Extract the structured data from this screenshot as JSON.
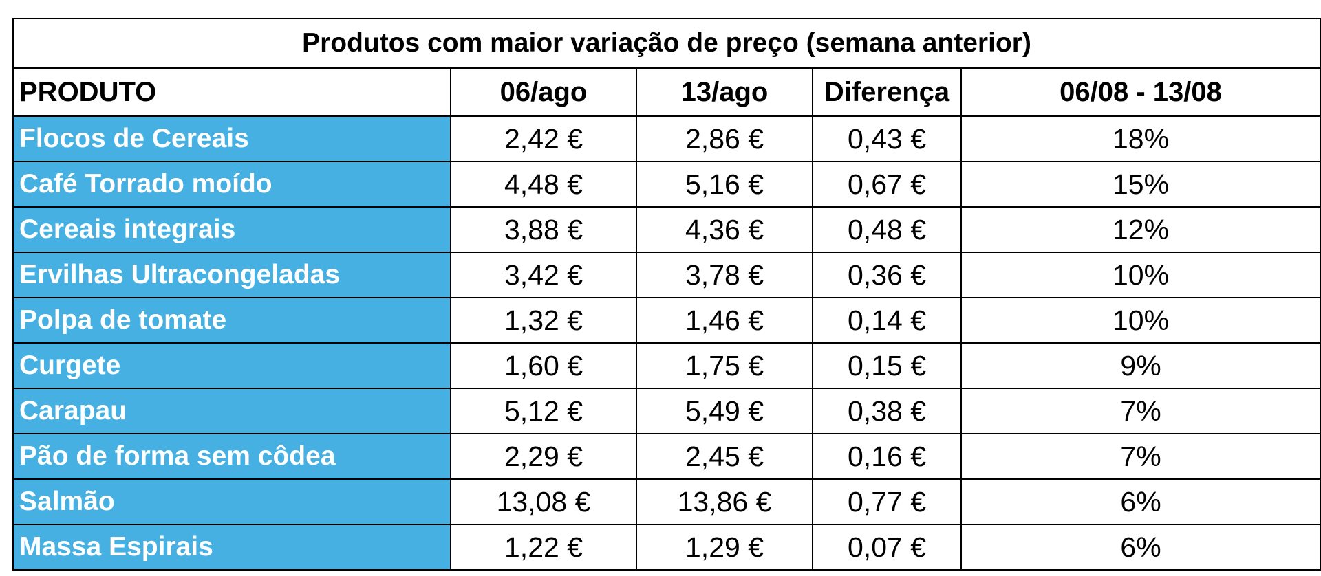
{
  "table": {
    "title": "Produtos com maior variação de preço (semana anterior)",
    "headers": [
      "PRODUTO",
      "06/ago",
      "13/ago",
      "Diferença",
      "06/08 - 13/08"
    ],
    "product_bg_color": "#45b0e1",
    "rows": [
      [
        "Flocos de Cereais",
        "2,42 €",
        "2,86 €",
        "0,43 €",
        "18%"
      ],
      [
        "Café Torrado moído",
        "4,48 €",
        "5,16 €",
        "0,67 €",
        "15%"
      ],
      [
        "Cereais integrais",
        "3,88 €",
        "4,36 €",
        "0,48 €",
        "12%"
      ],
      [
        "Ervilhas Ultracongeladas",
        "3,42 €",
        "3,78 €",
        "0,36 €",
        "10%"
      ],
      [
        "Polpa de tomate",
        "1,32 €",
        "1,46 €",
        "0,14 €",
        "10%"
      ],
      [
        "Curgete",
        "1,60 €",
        "1,75 €",
        "0,15 €",
        "9%"
      ],
      [
        "Carapau",
        "5,12 €",
        "5,49 €",
        "0,38 €",
        "7%"
      ],
      [
        "Pão de forma sem côdea",
        "2,29 €",
        "2,45 €",
        "0,16 €",
        "7%"
      ],
      [
        "Salmão",
        "13,08 €",
        "13,86 €",
        "0,77 €",
        "6%"
      ],
      [
        "Massa Espirais",
        "1,22 €",
        "1,29 €",
        "0,07 €",
        "6%"
      ]
    ]
  }
}
